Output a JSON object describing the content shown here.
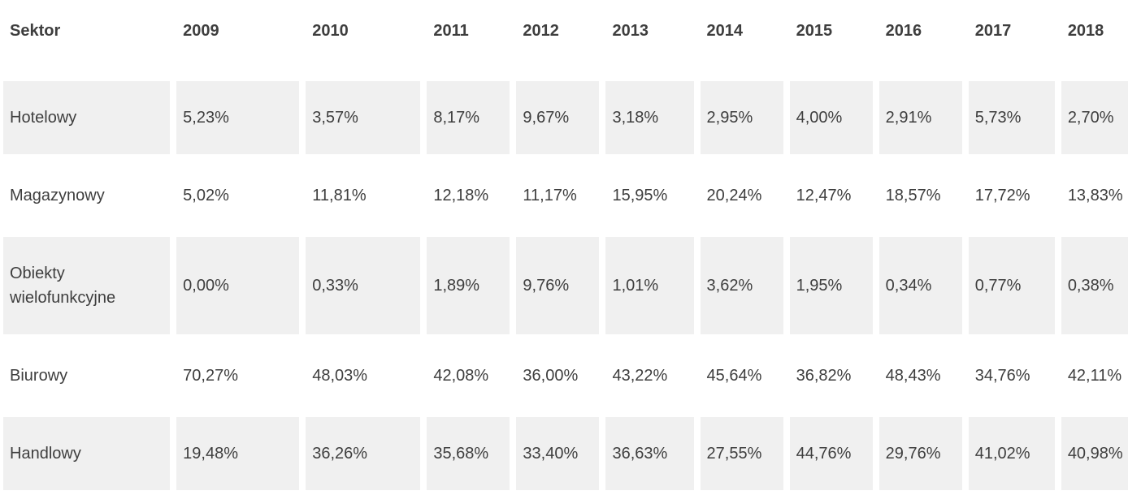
{
  "chart_data": {
    "type": "table",
    "columns": [
      "Sektor",
      "2009",
      "2010",
      "2011",
      "2012",
      "2013",
      "2014",
      "2015",
      "2016",
      "2017",
      "2018"
    ],
    "rows": [
      {
        "sector": "Hotelowy",
        "values": [
          "5,23%",
          "3,57%",
          "8,17%",
          "9,67%",
          "3,18%",
          "2,95%",
          "4,00%",
          "2,91%",
          "5,73%",
          "2,70%"
        ]
      },
      {
        "sector": "Magazynowy",
        "values": [
          "5,02%",
          "11,81%",
          "12,18%",
          "11,17%",
          "15,95%",
          "20,24%",
          "12,47%",
          "18,57%",
          "17,72%",
          "13,83%"
        ]
      },
      {
        "sector": "Obiekty wielofunkcyjne",
        "values": [
          "0,00%",
          "0,33%",
          "1,89%",
          "9,76%",
          "1,01%",
          "3,62%",
          "1,95%",
          "0,34%",
          "0,77%",
          "0,38%"
        ]
      },
      {
        "sector": "Biurowy",
        "values": [
          "70,27%",
          "48,03%",
          "42,08%",
          "36,00%",
          "43,22%",
          "45,64%",
          "36,82%",
          "48,43%",
          "34,76%",
          "42,11%"
        ]
      },
      {
        "sector": "Handlowy",
        "values": [
          "19,48%",
          "36,26%",
          "35,68%",
          "33,40%",
          "36,63%",
          "27,55%",
          "44,76%",
          "29,76%",
          "41,02%",
          "40,98%"
        ]
      }
    ]
  },
  "colors": {
    "background": "#ffffff",
    "stripe_bg": "#f0f0f0",
    "text": "#3e3e3e"
  }
}
